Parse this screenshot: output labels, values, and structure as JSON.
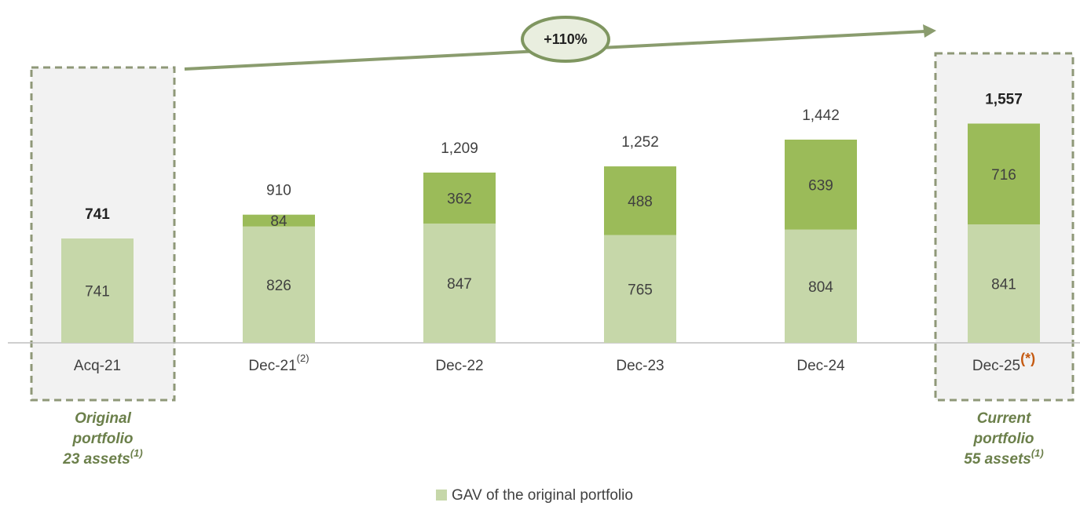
{
  "chart_data": {
    "type": "bar",
    "stacked": true,
    "categories": [
      "Acq-21",
      "Dec-21",
      "Dec-22",
      "Dec-23",
      "Dec-24",
      "Dec-25"
    ],
    "category_notes": [
      null,
      "(2)",
      null,
      null,
      null,
      "(*)"
    ],
    "series": [
      {
        "name": "GAV of the original portfolio",
        "color": "#c6d7a9",
        "values": [
          741,
          826,
          847,
          765,
          804,
          841
        ]
      },
      {
        "color": "#9bbb59",
        "values": [
          null,
          84,
          362,
          488,
          639,
          716
        ]
      }
    ],
    "totals": [
      741,
      910,
      1209,
      1252,
      1442,
      1557
    ],
    "total_labels": [
      "741",
      "910",
      "1,209",
      "1,252",
      "1,442",
      "1,557"
    ],
    "total_bold": [
      true,
      false,
      false,
      false,
      false,
      true
    ],
    "growth_label": "+110%",
    "callouts": [
      {
        "lines": [
          "Original",
          "portfolio",
          "23 assets"
        ],
        "note": "(1)"
      },
      {
        "lines": [
          "Current",
          "portfolio",
          "55 assets"
        ],
        "note": "(1)"
      }
    ],
    "legend": true
  }
}
